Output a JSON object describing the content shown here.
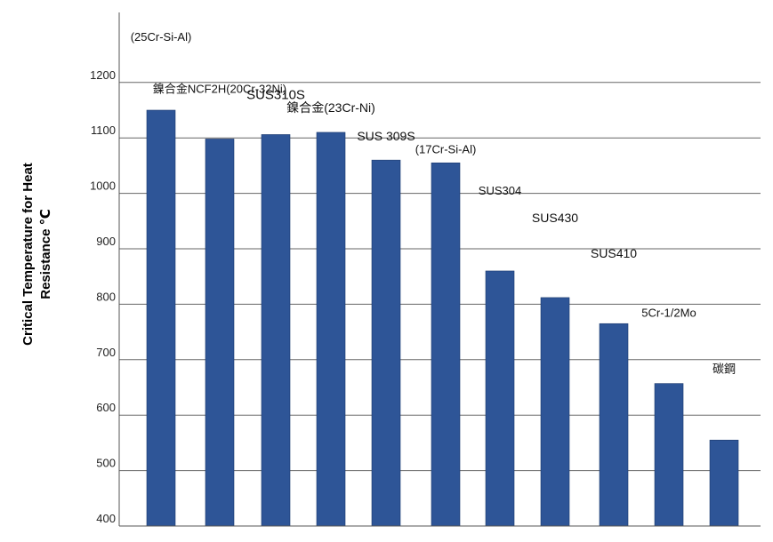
{
  "chart_data": {
    "type": "bar",
    "ylabel_line1": "Critical Temperature for Heat",
    "ylabel_line2": "Resistance ℃",
    "ylim": [
      400,
      1300
    ],
    "yticks": [
      400,
      500,
      600,
      700,
      800,
      900,
      1000,
      1100,
      1200
    ],
    "grid": true,
    "bar_color": "#2E5597",
    "categories": [
      "(25Cr-Si-Al)",
      "鎳合金NCF2H(20Cr-32Ni)",
      "SUS310S",
      "鎳合金(23Cr-Ni)",
      "SUS 309S",
      "(17Cr-Si-Al)",
      "SUS304",
      "SUS430",
      "SUS410",
      "5Cr-1/2Mo",
      "碳鋼"
    ],
    "values": [
      1150,
      1098,
      1106,
      1110,
      1060,
      1055,
      860,
      812,
      765,
      657,
      555
    ]
  }
}
